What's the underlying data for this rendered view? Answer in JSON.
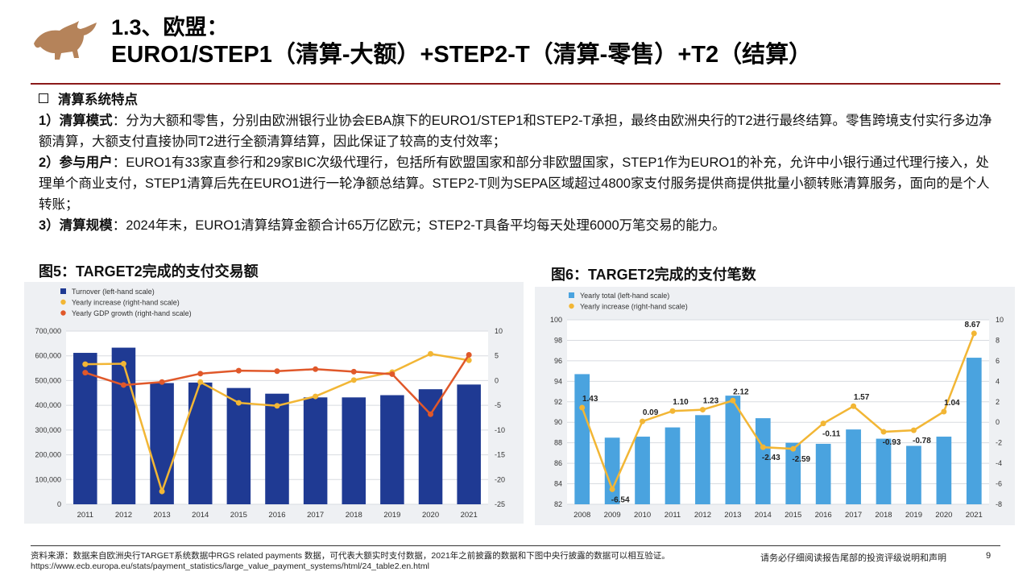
{
  "header": {
    "title_line1": "1.3、欧盟：",
    "title_line2": "EURO1/STEP1（清算-大额）+STEP2-T（清算-零售）+T2（结算）",
    "logo_icon": "bull-logo-icon"
  },
  "content": {
    "heading": "清算系统特点",
    "p1_label": "1）清算模式",
    "p1_text": "：分为大额和零售，分别由欧洲银行业协会EBA旗下的EURO1/STEP1和STEP2-T承担，最终由欧洲央行的T2进行最终结算。零售跨境支付实行多边净额清算，大额支付直接协同T2进行全额清算结算，因此保证了较高的支付效率；",
    "p2_label": "2）参与用户",
    "p2_text": "：EURO1有33家直参行和29家BIC次级代理行，包括所有欧盟国家和部分非欧盟国家，STEP1作为EURO1的补充，允许中小银行通过代理行接入，处理单个商业支付，STEP1清算后先在EURO1进行一轮净额总结算。STEP2-T则为SEPA区域超过4800家支付服务提供商提供批量小额转账清算服务，面向的是个人转账；",
    "p3_label": "3）清算规模",
    "p3_text": "：2024年末，EURO1清算结算金额合计65万亿欧元；STEP2-T具备平均每天处理6000万笔交易的能力。"
  },
  "figures": {
    "fig5_title": "图5：TARGET2完成的支付交易额",
    "fig6_title": "图6：TARGET2完成的支付笔数"
  },
  "chart_data": [
    {
      "type": "bar",
      "categories": [
        "2011",
        "2012",
        "2013",
        "2014",
        "2015",
        "2016",
        "2017",
        "2018",
        "2019",
        "2020",
        "2021"
      ],
      "series": [
        {
          "name": "Turnover (left-hand scale)",
          "type": "bar",
          "axis": "left",
          "color": "#1f3a93",
          "values": [
            612000,
            633000,
            490000,
            492000,
            470000,
            447000,
            432000,
            432000,
            441000,
            465000,
            484000
          ]
        },
        {
          "name": "Yearly increase (right-hand scale)",
          "type": "line",
          "axis": "right",
          "color": "#f2b635",
          "values": [
            3.3,
            3.4,
            -22.4,
            -0.3,
            -4.5,
            -5.1,
            -3.2,
            0.1,
            1.7,
            5.4,
            4.1
          ]
        },
        {
          "name": "Yearly GDP growth (right-hand scale)",
          "type": "line",
          "axis": "right",
          "color": "#e0582a",
          "values": [
            1.6,
            -0.9,
            -0.3,
            1.4,
            2.0,
            1.9,
            2.3,
            1.8,
            1.3,
            -6.8,
            5.2
          ]
        }
      ],
      "y_left_ticks": [
        "700,000",
        "600,000",
        "500,000",
        "400,000",
        "300,000",
        "200,000",
        "100,000",
        "0"
      ],
      "ylim_left": [
        0,
        700000
      ],
      "y_right_ticks": [
        "10",
        "5",
        "0",
        "-5",
        "-10",
        "-15",
        "-20",
        "-25"
      ],
      "ylim_right": [
        -25,
        10
      ],
      "grid": true,
      "legend_position": "top-left"
    },
    {
      "type": "bar",
      "categories": [
        "2008",
        "2009",
        "2010",
        "2011",
        "2012",
        "2013",
        "2014",
        "2015",
        "2016",
        "2017",
        "2018",
        "2019",
        "2020",
        "2021"
      ],
      "series": [
        {
          "name": "Yearly total (left-hand scale)",
          "type": "bar",
          "axis": "left",
          "color": "#4aa3df",
          "values": [
            94.7,
            88.5,
            88.6,
            89.5,
            90.7,
            92.6,
            90.4,
            88.0,
            87.9,
            89.3,
            88.4,
            87.7,
            88.6,
            96.3
          ]
        },
        {
          "name": "Yearly increase (right-hand scale)",
          "type": "line",
          "axis": "right",
          "color": "#f2b635",
          "values": [
            1.43,
            -6.54,
            0.09,
            1.1,
            1.23,
            2.12,
            -2.43,
            -2.59,
            -0.11,
            1.57,
            -0.93,
            -0.78,
            1.04,
            8.67
          ],
          "labels": [
            "1.43",
            "-6.54",
            "0.09",
            "1.10",
            "1.23",
            "2.12",
            "-2.43",
            "-2.59",
            "-0.11",
            "1.57",
            "-0.93",
            "-0.78",
            "1.04",
            "8.67"
          ]
        }
      ],
      "y_left_ticks": [
        "100",
        "98",
        "96",
        "94",
        "92",
        "90",
        "88",
        "86",
        "84",
        "82"
      ],
      "ylim_left": [
        82,
        100
      ],
      "y_right_ticks": [
        "10",
        "8",
        "6",
        "4",
        "2",
        "0",
        "-2",
        "-4",
        "-6",
        "-8"
      ],
      "ylim_right": [
        -8,
        10
      ],
      "grid": true,
      "legend_position": "top-left"
    }
  ],
  "footer": {
    "source_line1": "资料来源：数据来自欧洲央行TARGET系统数据中RGS related payments 数据，可代表大额实时支付数据，2021年之前披露的数据和下图中央行披露的数据可以相互验证。",
    "source_line2": "https://www.ecb.europa.eu/stats/payment_statistics/large_value_payment_systems/html/24_table2.en.html",
    "disclaimer": "请务必仔细阅读报告尾部的投资评级说明和声明",
    "page_number": "9"
  },
  "colors": {
    "accent_rule": "#8b1a1a",
    "logo": "#b5835a"
  }
}
